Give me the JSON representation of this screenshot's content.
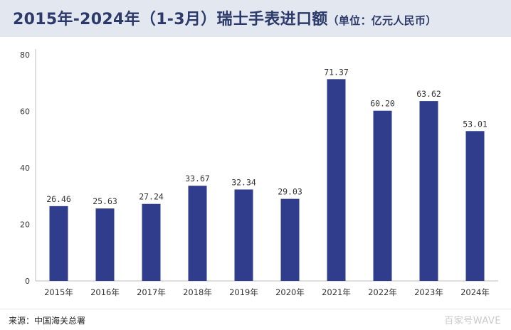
{
  "title": "2015年-2024年（1-3月）瑞士手表进口额",
  "unit": "（单位：亿元人民币）",
  "source": "来源：中国海关总署",
  "watermark": "百家号WAVE",
  "colors": {
    "bar": "#2f3d8c",
    "title": "#2c3a6b",
    "title_bg": "#e3e7ef"
  },
  "chart_data": {
    "type": "bar",
    "title": "2015年-2024年（1-3月）瑞士手表进口额",
    "xlabel": "",
    "ylabel": "",
    "categories": [
      "2015年",
      "2016年",
      "2017年",
      "2018年",
      "2019年",
      "2020年",
      "2021年",
      "2022年",
      "2023年",
      "2024年"
    ],
    "values": [
      26.46,
      25.63,
      27.24,
      33.67,
      32.34,
      29.03,
      71.37,
      60.2,
      63.62,
      53.01
    ],
    "value_labels": [
      "26.46",
      "25.63",
      "27.24",
      "33.67",
      "32.34",
      "29.03",
      "71.37",
      "60.20",
      "63.62",
      "53.01"
    ],
    "ylim": [
      0,
      80
    ],
    "yticks": [
      0,
      20,
      40,
      60,
      80
    ],
    "grid": false,
    "legend": "none"
  }
}
